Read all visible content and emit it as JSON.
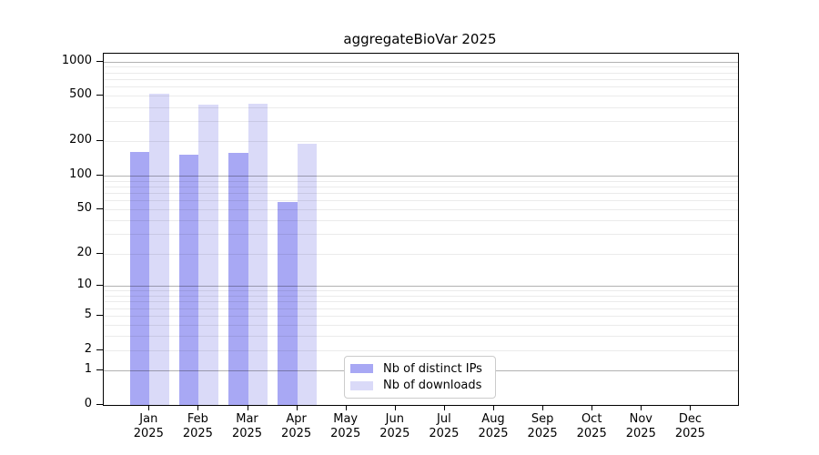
{
  "chart_data": {
    "type": "bar",
    "title": "aggregateBioVar 2025",
    "categories": [
      "Jan",
      "Feb",
      "Mar",
      "Apr",
      "May",
      "Jun",
      "Jul",
      "Aug",
      "Sep",
      "Oct",
      "Nov",
      "Dec"
    ],
    "category_year": "2025",
    "series": [
      {
        "name": "Nb of distinct IPs",
        "color": "#a8a8f4",
        "values": [
          162,
          152,
          157,
          58,
          0,
          0,
          0,
          0,
          0,
          0,
          0,
          0
        ]
      },
      {
        "name": "Nb of downloads",
        "color": "#dadaf8",
        "values": [
          523,
          422,
          426,
          192,
          0,
          0,
          0,
          0,
          0,
          0,
          0,
          0
        ]
      }
    ],
    "y_axis": {
      "scale": "log1p",
      "ylim": [
        0,
        1000
      ],
      "tick_values": [
        0,
        1,
        2,
        5,
        10,
        20,
        50,
        100,
        200,
        500,
        1000
      ],
      "major_grid_values": [
        1,
        10,
        100,
        1000
      ],
      "minor_grid_values": [
        2,
        3,
        4,
        5,
        6,
        7,
        8,
        9,
        20,
        30,
        40,
        50,
        60,
        70,
        80,
        90,
        200,
        300,
        400,
        500,
        600,
        700,
        800,
        900
      ]
    },
    "legend": {
      "position": "lower center"
    },
    "grid": "both",
    "colors": {
      "major_grid": "rgba(0,0,0,0.30)",
      "minor_grid": "rgba(0,0,0,0.08)",
      "axis": "#000000",
      "background": "#ffffff"
    }
  }
}
